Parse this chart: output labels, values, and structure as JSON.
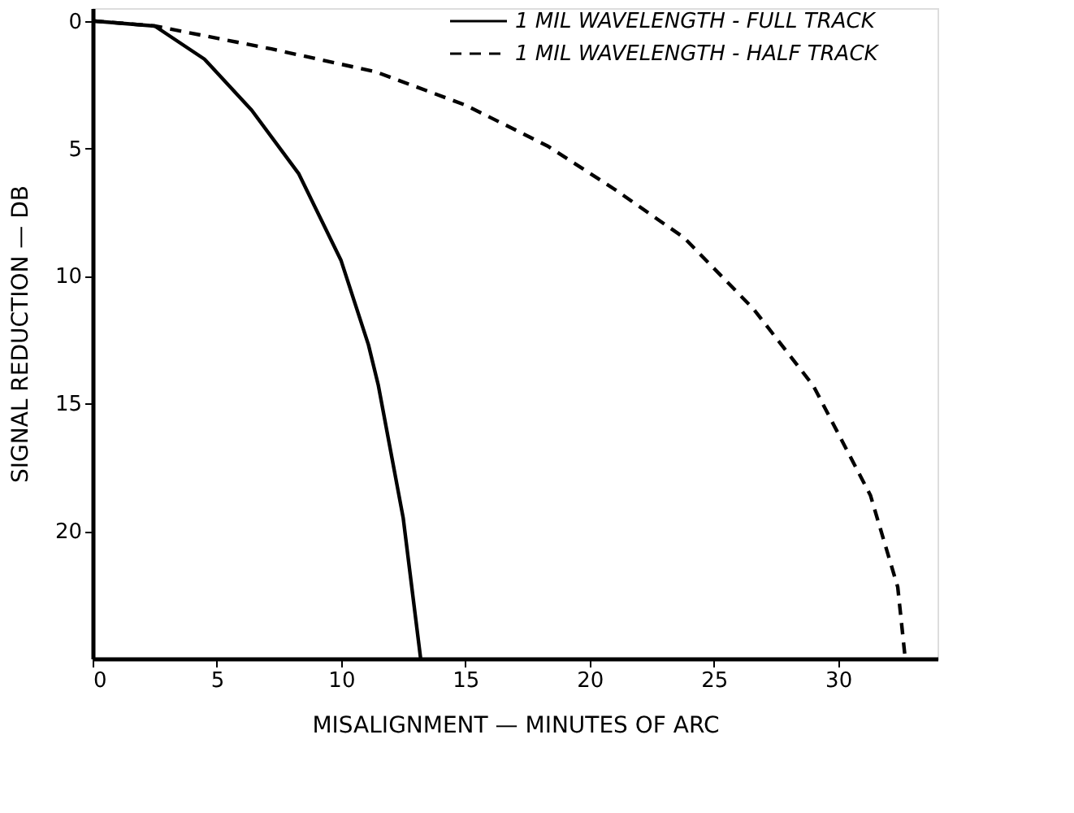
{
  "chart_data": {
    "type": "line",
    "xlabel": "MISALIGNMENT — MINUTES OF ARC",
    "ylabel": "SIGNAL REDUCTION — DB",
    "xlim": [
      0,
      34
    ],
    "xticks": [
      0,
      5,
      10,
      15,
      20,
      25,
      30
    ],
    "ylim": [
      25,
      -0.5
    ],
    "yticks": [
      0,
      5,
      10,
      15,
      20
    ],
    "grid": false,
    "legend": "top right",
    "marker": "none",
    "series": [
      {
        "name": "1 MIL WAVELENGTH - FULL TRACK",
        "color": "#000000",
        "line_style": "solid",
        "x": [
          0,
          2.5,
          4.5,
          6.4,
          8.3,
          10,
          11.1,
          11.5,
          12.5,
          13.2
        ],
        "values": [
          0,
          0.2,
          1.5,
          3.5,
          6,
          9.4,
          12.7,
          14.3,
          19.5,
          25
        ]
      },
      {
        "name": "1 MIL WAVELENGTH - HALF TRACK",
        "color": "#000000",
        "line_style": "dashed",
        "x": [
          0,
          2.5,
          7.2,
          11.4,
          15,
          18.3,
          21,
          23.8,
          26.6,
          29,
          31.3,
          32.4,
          32.7
        ],
        "values": [
          0,
          0.2,
          1.1,
          2,
          3.3,
          4.9,
          6.6,
          8.5,
          11.3,
          14.3,
          18.6,
          22.2,
          25
        ]
      }
    ]
  }
}
